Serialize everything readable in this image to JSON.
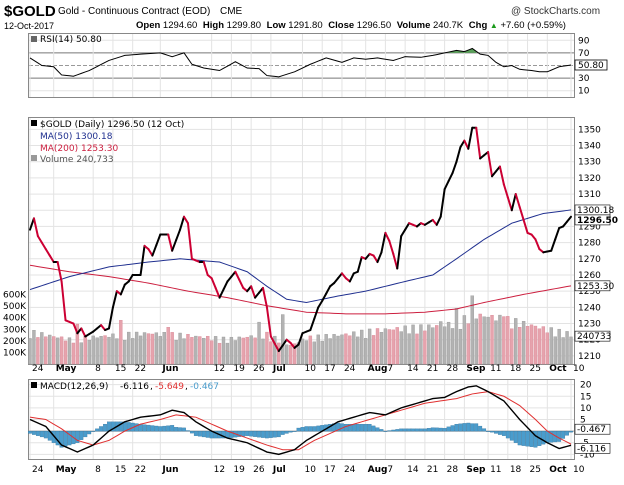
{
  "header": {
    "symbol": "$GOLD",
    "name": "Gold - Continuous Contract (EOD)",
    "exchange": "CME",
    "credit": "@ StockCharts.com",
    "date": "12-Oct-2017",
    "open_label": "Open",
    "open": "1294.60",
    "high_label": "High",
    "high": "1299.80",
    "low_label": "Low",
    "low": "1291.80",
    "close_label": "Close",
    "close": "1296.50",
    "volume_label": "Volume",
    "volume": "240.7K",
    "chg_label": "Chg",
    "chg": "+7.60 (+0.59%)",
    "chg_arrow": "▲"
  },
  "colors": {
    "up": "#000000",
    "down": "#cc0033",
    "ma50": "#1f2f8f",
    "ma200": "#cc1f3f",
    "vol_up": "#b3b3b3",
    "vol_down": "#e6a3ad",
    "macd_hist": "#4a9ccc",
    "signal": "#e03030",
    "grid": "#e3e3e3",
    "rsi_fill": "#5aa05a"
  },
  "rsi_panel": {
    "legend": "RSI(14) 50.80",
    "current_label": "50.80",
    "ticks": [
      "90",
      "70",
      "50",
      "30",
      "10"
    ]
  },
  "price_panel": {
    "legend_main": "$GOLD (Daily) 1296.50 (12 Oct)",
    "legend_ma50": "MA(50) 1300.18",
    "legend_ma200": "MA(200) 1253.30",
    "legend_volume": "Volume 240,733",
    "price_ticks": [
      "1350",
      "1340",
      "1330",
      "1320",
      "1310",
      "1300",
      "1290",
      "1280",
      "1270",
      "1260",
      "1250",
      "1240",
      "1230",
      "1220",
      "1210"
    ],
    "volume_ticks": [
      "600K",
      "500K",
      "400K",
      "300K",
      "200K",
      "100K"
    ],
    "close_label": "1296.50",
    "ma50_label": "1300.18",
    "ma200_label": "1253.30",
    "volume_label": "240733"
  },
  "macd_panel": {
    "legend_name": "MACD(12,26,9)",
    "legend_macd": "-6.116",
    "legend_signal": "-5.649",
    "legend_hist": "-0.467",
    "ticks": [
      "20",
      "15",
      "10",
      "5",
      "0",
      "-5",
      "-10"
    ],
    "hist_label": "-0.467",
    "macd_label": "-6.116"
  },
  "x_axis": {
    "labels": [
      {
        "text": "24",
        "day": 0
      },
      {
        "text": "May",
        "day": 6
      },
      {
        "text": "8",
        "day": 16
      },
      {
        "text": "15",
        "day": 21
      },
      {
        "text": "22",
        "day": 26
      },
      {
        "text": "Jun",
        "day": 33
      },
      {
        "text": "12",
        "day": 46
      },
      {
        "text": "19",
        "day": 51
      },
      {
        "text": "26",
        "day": 56
      },
      {
        "text": "Jul",
        "day": 61
      },
      {
        "text": "10",
        "day": 69
      },
      {
        "text": "17",
        "day": 74
      },
      {
        "text": "24",
        "day": 79
      },
      {
        "text": "Aug",
        "day": 85
      },
      {
        "text": "7",
        "day": 90
      },
      {
        "text": "14",
        "day": 95
      },
      {
        "text": "21",
        "day": 100
      },
      {
        "text": "28",
        "day": 105
      },
      {
        "text": "Sep",
        "day": 110
      },
      {
        "text": "11",
        "day": 116
      },
      {
        "text": "18",
        "day": 121
      },
      {
        "text": "25",
        "day": 126
      },
      {
        "text": "Oct",
        "day": 131
      },
      {
        "text": "10",
        "day": 137
      }
    ],
    "bold_labels": [
      "May",
      "Jun",
      "Jul",
      "Aug",
      "Sep",
      "Oct"
    ]
  },
  "chart_data": {
    "type": "line",
    "title": "$GOLD Gold - Continuous Contract (EOD) CME",
    "x_start": "24-Apr-2017",
    "x_end": "12-Oct-2017",
    "trading_days": 123,
    "ylim_price": [
      1205,
      1357
    ],
    "ylim_rsi": [
      0,
      100
    ],
    "ylim_macd": [
      -12,
      22
    ],
    "ylim_volume": [
      0,
      700000
    ],
    "price_anchors": [
      [
        0,
        1288
      ],
      [
        1,
        1295
      ],
      [
        2,
        1284
      ],
      [
        4,
        1276
      ],
      [
        6,
        1268
      ],
      [
        7,
        1268
      ],
      [
        8,
        1256
      ],
      [
        9,
        1232
      ],
      [
        11,
        1230
      ],
      [
        12,
        1224
      ],
      [
        13,
        1227
      ],
      [
        14,
        1222
      ],
      [
        16,
        1225
      ],
      [
        18,
        1229
      ],
      [
        19,
        1226
      ],
      [
        20,
        1227
      ],
      [
        21,
        1240
      ],
      [
        22,
        1250
      ],
      [
        23,
        1248
      ],
      [
        24,
        1254
      ],
      [
        25,
        1256
      ],
      [
        26,
        1260
      ],
      [
        28,
        1260
      ],
      [
        29,
        1278
      ],
      [
        30,
        1276
      ],
      [
        31,
        1272
      ],
      [
        33,
        1285
      ],
      [
        35,
        1285
      ],
      [
        36,
        1275
      ],
      [
        38,
        1288
      ],
      [
        39,
        1296
      ],
      [
        40,
        1292
      ],
      [
        41,
        1270
      ],
      [
        43,
        1268
      ],
      [
        44,
        1268
      ],
      [
        45,
        1260
      ],
      [
        46,
        1258
      ],
      [
        48,
        1246
      ],
      [
        50,
        1256
      ],
      [
        52,
        1262
      ],
      [
        54,
        1252
      ],
      [
        55,
        1250
      ],
      [
        56,
        1253
      ],
      [
        57,
        1246
      ],
      [
        59,
        1252
      ],
      [
        60,
        1240
      ],
      [
        61,
        1222
      ],
      [
        63,
        1213
      ],
      [
        65,
        1220
      ],
      [
        66,
        1218
      ],
      [
        67,
        1215
      ],
      [
        68,
        1217
      ],
      [
        69,
        1224
      ],
      [
        70,
        1225
      ],
      [
        71,
        1226
      ],
      [
        72,
        1233
      ],
      [
        73,
        1240
      ],
      [
        74,
        1244
      ],
      [
        76,
        1253
      ],
      [
        77,
        1255
      ],
      [
        79,
        1261
      ],
      [
        80,
        1258
      ],
      [
        81,
        1256
      ],
      [
        82,
        1261
      ],
      [
        83,
        1262
      ],
      [
        84,
        1271
      ],
      [
        85,
        1270
      ],
      [
        86,
        1273
      ],
      [
        87,
        1272
      ],
      [
        88,
        1268
      ],
      [
        89,
        1274
      ],
      [
        90,
        1286
      ],
      [
        91,
        1281
      ],
      [
        92,
        1273
      ],
      [
        93,
        1264
      ],
      [
        94,
        1284
      ],
      [
        95,
        1288
      ],
      [
        96,
        1292
      ],
      [
        98,
        1290
      ],
      [
        99,
        1292
      ],
      [
        100,
        1291
      ],
      [
        102,
        1294
      ],
      [
        103,
        1291
      ],
      [
        104,
        1296
      ],
      [
        105,
        1313
      ],
      [
        106,
        1318
      ],
      [
        107,
        1323
      ],
      [
        108,
        1330
      ],
      [
        109,
        1339
      ],
      [
        110,
        1343
      ],
      [
        111,
        1338
      ],
      [
        112,
        1351
      ],
      [
        113,
        1351
      ],
      [
        114,
        1332
      ],
      [
        116,
        1336
      ],
      [
        117,
        1321
      ],
      [
        119,
        1327
      ],
      [
        120,
        1316
      ],
      [
        121,
        1308
      ],
      [
        122,
        1300
      ],
      [
        123,
        1310
      ],
      [
        124,
        1302
      ],
      [
        126,
        1286
      ],
      [
        127,
        1285
      ],
      [
        128,
        1282
      ],
      [
        129,
        1276
      ],
      [
        130,
        1274
      ],
      [
        132,
        1275
      ],
      [
        134,
        1289
      ],
      [
        135,
        1290
      ],
      [
        137,
        1296
      ]
    ],
    "ma50_anchors": [
      [
        0,
        1251
      ],
      [
        10,
        1259
      ],
      [
        20,
        1265
      ],
      [
        30,
        1268
      ],
      [
        38,
        1270
      ],
      [
        48,
        1268
      ],
      [
        55,
        1262
      ],
      [
        60,
        1253
      ],
      [
        65,
        1245
      ],
      [
        70,
        1243
      ],
      [
        78,
        1247
      ],
      [
        85,
        1250
      ],
      [
        95,
        1256
      ],
      [
        102,
        1260
      ],
      [
        108,
        1270
      ],
      [
        115,
        1282
      ],
      [
        122,
        1292
      ],
      [
        130,
        1298
      ],
      [
        137,
        1300.2
      ]
    ],
    "ma200_anchors": [
      [
        0,
        1266
      ],
      [
        10,
        1262
      ],
      [
        20,
        1259
      ],
      [
        30,
        1255
      ],
      [
        40,
        1250
      ],
      [
        50,
        1246
      ],
      [
        60,
        1241
      ],
      [
        70,
        1237
      ],
      [
        80,
        1236
      ],
      [
        90,
        1236
      ],
      [
        100,
        1237
      ],
      [
        108,
        1239
      ],
      [
        115,
        1243
      ],
      [
        125,
        1248
      ],
      [
        137,
        1253.3
      ]
    ],
    "rsi_anchors": [
      [
        0,
        62
      ],
      [
        3,
        50
      ],
      [
        6,
        48
      ],
      [
        8,
        35
      ],
      [
        11,
        33
      ],
      [
        15,
        42
      ],
      [
        20,
        58
      ],
      [
        24,
        66
      ],
      [
        28,
        68
      ],
      [
        33,
        70
      ],
      [
        36,
        64
      ],
      [
        39,
        70
      ],
      [
        41,
        52
      ],
      [
        44,
        46
      ],
      [
        48,
        42
      ],
      [
        52,
        56
      ],
      [
        55,
        46
      ],
      [
        58,
        45
      ],
      [
        60,
        34
      ],
      [
        63,
        32
      ],
      [
        67,
        40
      ],
      [
        71,
        52
      ],
      [
        75,
        62
      ],
      [
        79,
        55
      ],
      [
        82,
        62
      ],
      [
        85,
        60
      ],
      [
        88,
        62
      ],
      [
        92,
        58
      ],
      [
        95,
        64
      ],
      [
        99,
        63
      ],
      [
        102,
        66
      ],
      [
        105,
        70
      ],
      [
        108,
        74
      ],
      [
        110,
        72
      ],
      [
        112,
        77
      ],
      [
        114,
        68
      ],
      [
        116,
        66
      ],
      [
        118,
        55
      ],
      [
        120,
        48
      ],
      [
        122,
        50
      ],
      [
        124,
        44
      ],
      [
        127,
        42
      ],
      [
        129,
        40
      ],
      [
        131,
        40
      ],
      [
        134,
        48
      ],
      [
        137,
        50.8
      ]
    ],
    "macd_anchors": [
      [
        0,
        5
      ],
      [
        4,
        2
      ],
      [
        8,
        -6
      ],
      [
        12,
        -9
      ],
      [
        16,
        -6
      ],
      [
        20,
        0
      ],
      [
        24,
        4
      ],
      [
        28,
        6
      ],
      [
        33,
        7
      ],
      [
        36,
        9
      ],
      [
        39,
        8
      ],
      [
        42,
        4
      ],
      [
        46,
        0
      ],
      [
        50,
        -3
      ],
      [
        55,
        -5
      ],
      [
        60,
        -9
      ],
      [
        63,
        -10
      ],
      [
        67,
        -8
      ],
      [
        70,
        -4
      ],
      [
        74,
        0
      ],
      [
        78,
        4
      ],
      [
        82,
        6
      ],
      [
        86,
        8
      ],
      [
        90,
        7
      ],
      [
        94,
        10
      ],
      [
        98,
        12
      ],
      [
        102,
        14
      ],
      [
        105,
        14.5
      ],
      [
        108,
        17
      ],
      [
        111,
        19
      ],
      [
        113,
        19.5
      ],
      [
        116,
        17
      ],
      [
        120,
        13
      ],
      [
        124,
        5
      ],
      [
        128,
        -2
      ],
      [
        131,
        -5
      ],
      [
        134,
        -7.5
      ],
      [
        137,
        -6.1
      ]
    ],
    "signal_anchors": [
      [
        0,
        6
      ],
      [
        4,
        5
      ],
      [
        8,
        1
      ],
      [
        12,
        -4
      ],
      [
        16,
        -6
      ],
      [
        20,
        -4
      ],
      [
        24,
        0
      ],
      [
        28,
        3
      ],
      [
        33,
        5
      ],
      [
        37,
        7
      ],
      [
        42,
        6
      ],
      [
        46,
        3
      ],
      [
        50,
        0
      ],
      [
        55,
        -3
      ],
      [
        60,
        -6
      ],
      [
        64,
        -8
      ],
      [
        68,
        -8
      ],
      [
        72,
        -4
      ],
      [
        76,
        -1
      ],
      [
        80,
        2
      ],
      [
        84,
        4
      ],
      [
        88,
        6
      ],
      [
        92,
        8
      ],
      [
        96,
        10
      ],
      [
        100,
        12
      ],
      [
        104,
        13
      ],
      [
        108,
        14
      ],
      [
        112,
        16
      ],
      [
        116,
        17
      ],
      [
        120,
        15
      ],
      [
        124,
        11
      ],
      [
        128,
        5
      ],
      [
        131,
        0
      ],
      [
        134,
        -3
      ],
      [
        137,
        -5.6
      ]
    ],
    "volume_anchors": [
      [
        0,
        260000
      ],
      [
        10,
        200000
      ],
      [
        20,
        230000
      ],
      [
        30,
        250000
      ],
      [
        40,
        230000
      ],
      [
        50,
        200000
      ],
      [
        60,
        240000
      ],
      [
        66,
        150000
      ],
      [
        70,
        210000
      ],
      [
        80,
        240000
      ],
      [
        90,
        280000
      ],
      [
        100,
        300000
      ],
      [
        108,
        330000
      ],
      [
        112,
        400000
      ],
      [
        118,
        380000
      ],
      [
        125,
        330000
      ],
      [
        130,
        290000
      ],
      [
        137,
        240733
      ]
    ],
    "volume_spikes": [
      [
        12,
        300000
      ],
      [
        23,
        330000
      ],
      [
        35,
        350000
      ],
      [
        58,
        320000
      ],
      [
        64,
        380000
      ],
      [
        104,
        340000
      ],
      [
        108,
        420000
      ],
      [
        112,
        520000
      ],
      [
        120,
        450000
      ]
    ],
    "down_days": [
      2,
      4,
      6,
      8,
      9,
      11,
      12,
      14,
      19,
      23,
      30,
      31,
      35,
      36,
      40,
      41,
      43,
      45,
      46,
      48,
      54,
      55,
      57,
      60,
      61,
      63,
      66,
      67,
      71,
      80,
      81,
      87,
      88,
      91,
      92,
      93,
      98,
      100,
      103,
      111,
      114,
      117,
      120,
      121,
      122,
      124,
      126,
      127,
      128,
      129,
      130,
      131
    ]
  }
}
